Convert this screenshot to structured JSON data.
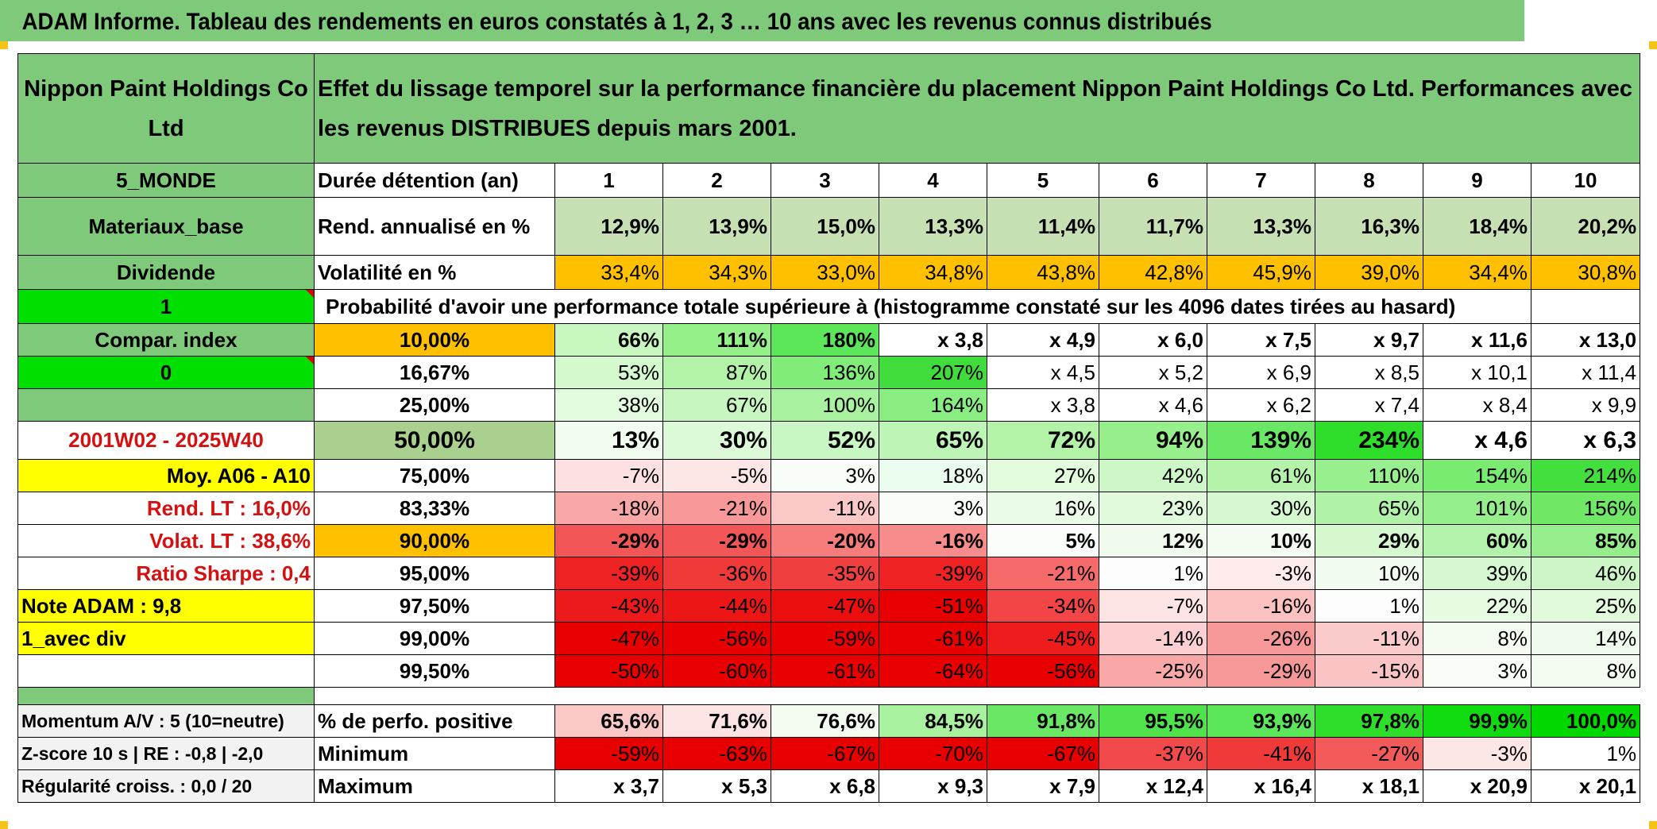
{
  "title": "ADAM Informe. Tableau des rendements en euros constatés à 1, 2, 3 … 10 ans avec les revenus connus distribués",
  "header": {
    "name": "Nippon Paint Holdings Co Ltd",
    "description": "Effet du lissage temporel sur la performance financière du placement Nippon Paint Holdings Co Ltd. Performances avec les revenus DISTRIBUES depuis mars 2001."
  },
  "left": {
    "zone": "5_MONDE",
    "sector": "Materiaux_base",
    "type": "Dividende",
    "flag1": "1",
    "compar": "Compar. index",
    "flag0": "0",
    "period": "2001W02 - 2025W40",
    "moy": "Moy. A06 - A10",
    "rend_lt": "Rend. LT :   16,0%",
    "volat_lt": "Volat. LT :   38,6%",
    "sharpe": "Ratio Sharpe :    0,4",
    "note": "Note ADAM : 9,8",
    "div": "1_avec div",
    "momentum": "Momentum A/V : 5 (10=neutre)",
    "zscore": "Z-score 10 s | RE : -0,8 | -2,0",
    "regularite": "Régularité croiss. : 0,0 / 20"
  },
  "years": {
    "label": "Durée détention (an)",
    "values": [
      "1",
      "2",
      "3",
      "4",
      "5",
      "6",
      "7",
      "8",
      "9",
      "10"
    ]
  },
  "rend": {
    "label": "Rend. annualisé en %",
    "values": [
      "12,9%",
      "13,9%",
      "15,0%",
      "13,3%",
      "11,4%",
      "11,7%",
      "13,3%",
      "16,3%",
      "18,4%",
      "20,2%"
    ]
  },
  "vol": {
    "label": "Volatilité en %",
    "values": [
      "33,4%",
      "34,3%",
      "33,0%",
      "34,8%",
      "43,8%",
      "42,8%",
      "45,9%",
      "39,0%",
      "34,4%",
      "30,8%"
    ]
  },
  "prob_title": "Probabilité d'avoir une performance totale supérieure à (histogramme constaté sur les 4096 dates tirées au hasard)",
  "quantiles": [
    {
      "label": "10,00%",
      "values": [
        "66%",
        "111%",
        "180%",
        "x 3,8",
        "x 4,9",
        "x 6,0",
        "x 7,5",
        "x 9,7",
        "x 11,6",
        "x 13,0"
      ]
    },
    {
      "label": "16,67%",
      "values": [
        "53%",
        "87%",
        "136%",
        "207%",
        "x 4,5",
        "x 5,2",
        "x 6,9",
        "x 8,5",
        "x 10,1",
        "x 11,4"
      ]
    },
    {
      "label": "25,00%",
      "values": [
        "38%",
        "67%",
        "100%",
        "164%",
        "x 3,8",
        "x 4,6",
        "x 6,2",
        "x 7,4",
        "x 8,4",
        "x 9,9"
      ]
    },
    {
      "label": "50,00%",
      "values": [
        "13%",
        "30%",
        "52%",
        "65%",
        "72%",
        "94%",
        "139%",
        "234%",
        "x 4,6",
        "x 6,3"
      ]
    },
    {
      "label": "75,00%",
      "values": [
        "-7%",
        "-5%",
        "3%",
        "18%",
        "27%",
        "42%",
        "61%",
        "110%",
        "154%",
        "214%"
      ]
    },
    {
      "label": "83,33%",
      "values": [
        "-18%",
        "-21%",
        "-11%",
        "3%",
        "16%",
        "23%",
        "30%",
        "65%",
        "101%",
        "156%"
      ]
    },
    {
      "label": "90,00%",
      "values": [
        "-29%",
        "-29%",
        "-20%",
        "-16%",
        "5%",
        "12%",
        "10%",
        "29%",
        "60%",
        "85%"
      ]
    },
    {
      "label": "95,00%",
      "values": [
        "-39%",
        "-36%",
        "-35%",
        "-39%",
        "-21%",
        "1%",
        "-3%",
        "10%",
        "39%",
        "46%"
      ]
    },
    {
      "label": "97,50%",
      "values": [
        "-43%",
        "-44%",
        "-47%",
        "-51%",
        "-34%",
        "-7%",
        "-16%",
        "1%",
        "22%",
        "25%"
      ]
    },
    {
      "label": "99,00%",
      "values": [
        "-47%",
        "-56%",
        "-59%",
        "-61%",
        "-45%",
        "-14%",
        "-26%",
        "-11%",
        "8%",
        "14%"
      ]
    },
    {
      "label": "99,50%",
      "values": [
        "-50%",
        "-60%",
        "-61%",
        "-64%",
        "-56%",
        "-25%",
        "-29%",
        "-15%",
        "3%",
        "8%"
      ]
    }
  ],
  "positive": {
    "label": "% de perfo. positive",
    "values": [
      "65,6%",
      "71,6%",
      "76,6%",
      "84,5%",
      "91,8%",
      "95,5%",
      "93,9%",
      "97,8%",
      "99,9%",
      "100,0%"
    ]
  },
  "minimum": {
    "label": "Minimum",
    "values": [
      "-59%",
      "-63%",
      "-67%",
      "-70%",
      "-67%",
      "-37%",
      "-41%",
      "-27%",
      "-3%",
      "1%"
    ]
  },
  "maximum": {
    "label": "Maximum",
    "values": [
      "x 3,7",
      "x 5,3",
      "x 6,8",
      "x 9,3",
      "x 7,9",
      "x 12,4",
      "x 16,4",
      "x 18,1",
      "x 20,9",
      "x 20,1"
    ]
  },
  "colors": {
    "header_green": "#7ec97a",
    "bright_green": "#00e000",
    "orange": "#ffc000",
    "yellow": "#ffff00",
    "label_red": "#d41010",
    "rend_green": "#c6e0b4"
  },
  "cell_colors": {
    "rend": [
      "#c6e0b4",
      "#c6e0b4",
      "#c6e0b4",
      "#c6e0b4",
      "#c6e0b4",
      "#c6e0b4",
      "#c6e0b4",
      "#c6e0b4",
      "#c6e0b4",
      "#c6e0b4"
    ],
    "vol": [
      "#ffc000",
      "#ffc000",
      "#ffc000",
      "#ffc000",
      "#ffc000",
      "#ffc000",
      "#ffc000",
      "#ffc000",
      "#ffc000",
      "#ffc000"
    ],
    "quantiles": [
      [
        "#c8f7c0",
        "#95f08a",
        "#5ce65a",
        "#ffffff",
        "#ffffff",
        "#ffffff",
        "#ffffff",
        "#ffffff",
        "#ffffff",
        "#ffffff"
      ],
      [
        "#d4f9cd",
        "#b2f3a8",
        "#82ec78",
        "#3fdc3c",
        "#ffffff",
        "#ffffff",
        "#ffffff",
        "#ffffff",
        "#ffffff",
        "#ffffff"
      ],
      [
        "#e2fbde",
        "#c8f6c0",
        "#a8f19f",
        "#8aed82",
        "#ffffff",
        "#ffffff",
        "#ffffff",
        "#ffffff",
        "#ffffff",
        "#ffffff"
      ],
      [
        "#f0fdef",
        "#dcfad7",
        "#c9f7c3",
        "#bcf5b5",
        "#b2f3a8",
        "#97ef8c",
        "#6ae765",
        "#2ede2a",
        "#ffffff",
        "#ffffff"
      ],
      [
        "#fde0e0",
        "#fde6e6",
        "#f8fdf7",
        "#eafced",
        "#e2fbdc",
        "#cef7c7",
        "#b5f3ab",
        "#97ef8e",
        "#79eb70",
        "#43df3e"
      ],
      [
        "#f9a8a8",
        "#f89898",
        "#fbc8c8",
        "#f8fdf7",
        "#eafbe7",
        "#e0fadb",
        "#d6f8d0",
        "#b0f2a7",
        "#94ee8a",
        "#6fe866"
      ],
      [
        "#f35656",
        "#f35656",
        "#f77c7c",
        "#f78c8c",
        "#fafdf9",
        "#f0fbed",
        "#f4fcf2",
        "#d5f8cf",
        "#b3f2aa",
        "#95ee8b"
      ],
      [
        "#ee2222",
        "#f03a3a",
        "#f03f3f",
        "#ee2222",
        "#f66a6a",
        "#fdfdfd",
        "#fdeaea",
        "#f2fbef",
        "#d6f8d0",
        "#cdf6c6"
      ],
      [
        "#ec1a1a",
        "#ec1616",
        "#ea0e0e",
        "#e80000",
        "#f24646",
        "#fde4e4",
        "#fbc0c0",
        "#fcfdfc",
        "#e6fbe2",
        "#e0fadb"
      ],
      [
        "#e80000",
        "#e80000",
        "#e80000",
        "#e80000",
        "#ee1c1c",
        "#fcd0d0",
        "#f79898",
        "#fbcaca",
        "#f4fcf2",
        "#eefbeb"
      ],
      [
        "#e80000",
        "#e80000",
        "#e80000",
        "#e80000",
        "#e80000",
        "#f9a8a8",
        "#f79898",
        "#fbc4c4",
        "#f8fdf7",
        "#f4fcf2"
      ]
    ],
    "positive": [
      "#fbc8c8",
      "#fde4e4",
      "#f4fcf2",
      "#a8f19f",
      "#6ae765",
      "#4fe24b",
      "#5ce65a",
      "#2ede2a",
      "#10da10",
      "#00d800"
    ],
    "minimum": [
      "#e80000",
      "#e80000",
      "#e80000",
      "#e80000",
      "#e80000",
      "#f24a4a",
      "#f03a3a",
      "#f35a5a",
      "#fde6e6",
      "#ffffff"
    ],
    "maximum": [
      "#ffffff",
      "#ffffff",
      "#ffffff",
      "#ffffff",
      "#ffffff",
      "#ffffff",
      "#ffffff",
      "#ffffff",
      "#ffffff",
      "#ffffff"
    ]
  }
}
